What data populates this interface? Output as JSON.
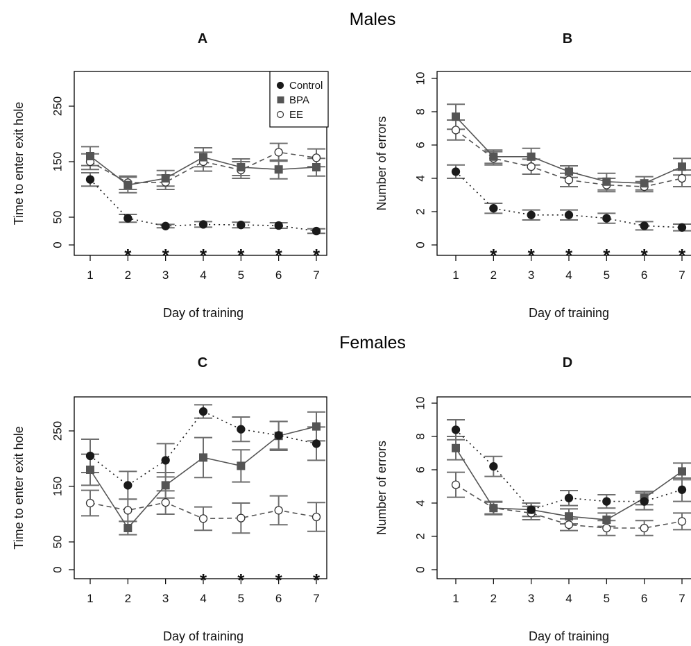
{
  "figure": {
    "row_titles": [
      "Males",
      "Females"
    ],
    "star_symbol": "*",
    "colors": {
      "control": "#1a1a1a",
      "bpa": "#555555",
      "ee": "#ffffff",
      "axis": "#000000",
      "errorbar": "#6e6e6e"
    }
  },
  "chart_data": [
    {
      "panel": "A",
      "group": "Males",
      "type": "line",
      "xlabel": "Day of training",
      "ylabel": "Time to enter exit hole",
      "x": [
        1,
        2,
        3,
        4,
        5,
        6,
        7
      ],
      "xlim": [
        1,
        7
      ],
      "ylim": [
        0,
        300
      ],
      "yticks": [
        0,
        50,
        150,
        250
      ],
      "legend": "top-right",
      "legend_entries": [
        "Control",
        "BPA",
        "EE"
      ],
      "series": [
        {
          "name": "Control",
          "marker": "filled-circle",
          "linestyle": "dotted",
          "values": [
            118,
            48,
            34,
            37,
            36,
            35,
            25
          ],
          "errors": [
            12,
            7,
            3,
            5,
            5,
            5,
            4
          ]
        },
        {
          "name": "BPA",
          "marker": "square",
          "linestyle": "solid",
          "values": [
            160,
            108,
            120,
            158,
            140,
            136,
            140
          ],
          "errors": [
            17,
            14,
            14,
            17,
            15,
            17,
            16
          ]
        },
        {
          "name": "EE",
          "marker": "open-circle",
          "linestyle": "dashed",
          "values": [
            150,
            112,
            113,
            150,
            135,
            167,
            157
          ],
          "errors": [
            14,
            12,
            13,
            17,
            15,
            16,
            16
          ]
        }
      ],
      "significant_days": [
        2,
        3,
        4,
        5,
        6,
        7
      ]
    },
    {
      "panel": "B",
      "group": "Males",
      "type": "line",
      "xlabel": "Day of training",
      "ylabel": "Number of errors",
      "x": [
        1,
        2,
        3,
        4,
        5,
        6,
        7
      ],
      "xlim": [
        1,
        7
      ],
      "ylim": [
        0,
        10
      ],
      "yticks": [
        0,
        2,
        4,
        6,
        8,
        10
      ],
      "series": [
        {
          "name": "Control",
          "marker": "filled-circle",
          "linestyle": "dotted",
          "values": [
            4.4,
            2.2,
            1.8,
            1.8,
            1.6,
            1.15,
            1.05
          ],
          "errors": [
            0.4,
            0.3,
            0.3,
            0.3,
            0.3,
            0.25,
            0.2
          ]
        },
        {
          "name": "BPA",
          "marker": "square",
          "linestyle": "solid",
          "values": [
            7.7,
            5.3,
            5.3,
            4.4,
            3.8,
            3.7,
            4.7
          ],
          "errors": [
            0.75,
            0.4,
            0.5,
            0.35,
            0.5,
            0.4,
            0.5
          ]
        },
        {
          "name": "EE",
          "marker": "open-circle",
          "linestyle": "dashed",
          "values": [
            6.9,
            5.2,
            4.7,
            3.9,
            3.6,
            3.5,
            4.0
          ],
          "errors": [
            0.6,
            0.4,
            0.45,
            0.4,
            0.4,
            0.3,
            0.5
          ]
        }
      ],
      "significant_days": [
        2,
        3,
        4,
        5,
        6,
        7
      ]
    },
    {
      "panel": "C",
      "group": "Females",
      "type": "line",
      "xlabel": "Day of training",
      "ylabel": "Time to enter exit hole",
      "x": [
        1,
        2,
        3,
        4,
        5,
        6,
        7
      ],
      "xlim": [
        1,
        7
      ],
      "ylim": [
        0,
        300
      ],
      "yticks": [
        0,
        50,
        150,
        250
      ],
      "series": [
        {
          "name": "Control",
          "marker": "filled-circle",
          "linestyle": "dotted",
          "values": [
            205,
            152,
            197,
            285,
            253,
            242,
            227
          ],
          "errors": [
            30,
            25,
            30,
            12,
            22,
            25,
            30
          ]
        },
        {
          "name": "BPA",
          "marker": "square",
          "linestyle": "solid",
          "values": [
            180,
            75,
            152,
            202,
            187,
            241,
            258
          ],
          "errors": [
            28,
            12,
            23,
            36,
            29,
            26,
            26
          ]
        },
        {
          "name": "EE",
          "marker": "open-circle",
          "linestyle": "dashed",
          "values": [
            120,
            107,
            121,
            92,
            93,
            107,
            95
          ],
          "errors": [
            23,
            20,
            21,
            21,
            27,
            26,
            26
          ]
        }
      ],
      "significant_days": [
        4,
        5,
        6,
        7
      ]
    },
    {
      "panel": "D",
      "group": "Females",
      "type": "line",
      "xlabel": "Day of training",
      "ylabel": "Number of errors",
      "x": [
        1,
        2,
        3,
        4,
        5,
        6,
        7
      ],
      "xlim": [
        1,
        7
      ],
      "ylim": [
        0,
        10
      ],
      "yticks": [
        0,
        2,
        4,
        6,
        8,
        10
      ],
      "series": [
        {
          "name": "Control",
          "marker": "filled-circle",
          "linestyle": "dotted",
          "values": [
            8.4,
            6.2,
            3.6,
            4.3,
            4.1,
            4.1,
            4.8
          ],
          "errors": [
            0.6,
            0.6,
            0.4,
            0.45,
            0.4,
            0.5,
            0.7
          ]
        },
        {
          "name": "BPA",
          "marker": "square",
          "linestyle": "solid",
          "values": [
            7.3,
            3.7,
            3.6,
            3.2,
            3.0,
            4.3,
            5.9
          ],
          "errors": [
            0.7,
            0.35,
            0.4,
            0.45,
            0.4,
            0.4,
            0.5
          ]
        },
        {
          "name": "EE",
          "marker": "open-circle",
          "linestyle": "dashed",
          "values": [
            5.1,
            3.7,
            3.4,
            2.7,
            2.5,
            2.5,
            2.9
          ],
          "errors": [
            0.75,
            0.4,
            0.4,
            0.35,
            0.45,
            0.45,
            0.5
          ]
        }
      ],
      "significant_days": []
    }
  ]
}
